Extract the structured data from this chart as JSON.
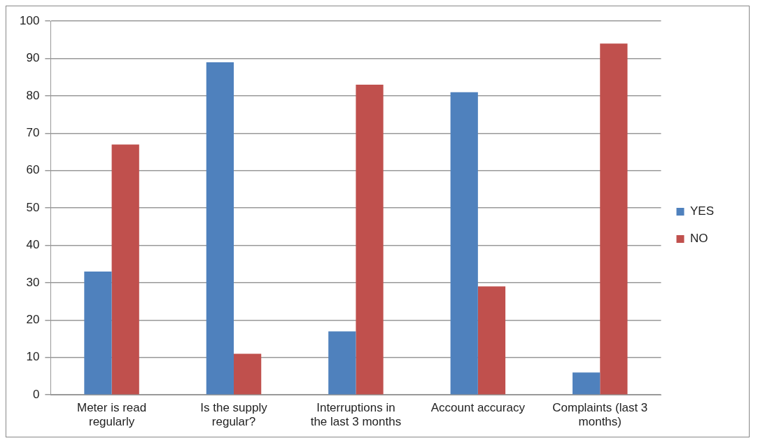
{
  "chart_data": {
    "type": "bar",
    "categories": [
      "Meter is read regularly",
      "Is the supply regular?",
      "Interruptions in the last 3 months",
      "Account accuracy",
      "Complaints (last 3 months)"
    ],
    "series": [
      {
        "name": "YES",
        "color": "#4f81bd",
        "values": [
          33,
          89,
          17,
          81,
          6
        ]
      },
      {
        "name": "NO",
        "color": "#c0504d",
        "values": [
          67,
          11,
          83,
          29,
          94
        ]
      }
    ],
    "ylim": [
      0,
      100
    ],
    "yticks": [
      0,
      10,
      20,
      30,
      40,
      50,
      60,
      70,
      80,
      90,
      100
    ],
    "grid": "y",
    "legend": "right"
  }
}
